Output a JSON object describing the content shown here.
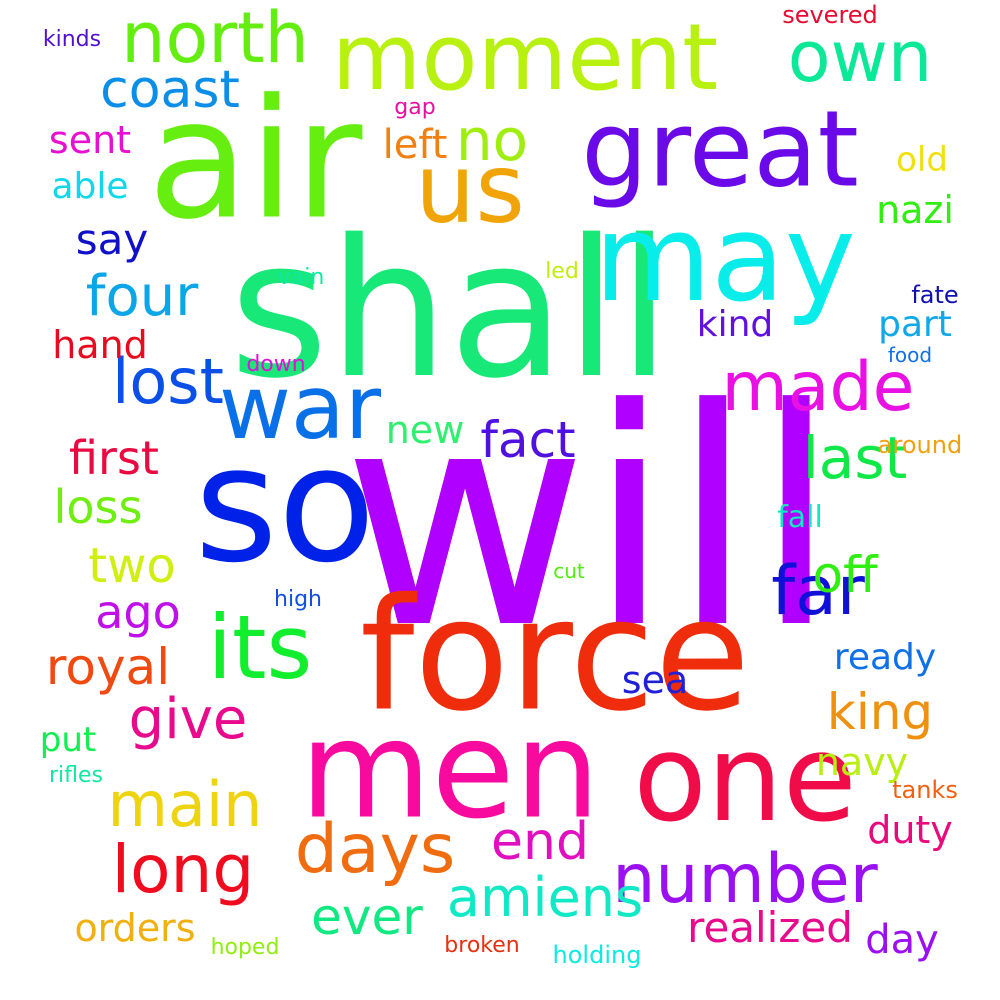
{
  "words": [
    {
      "text": "will",
      "color": "#b000ff"
    },
    {
      "text": "shall",
      "color": "#18e878"
    },
    {
      "text": "air",
      "color": "#66ee10"
    },
    {
      "text": "so",
      "color": "#0022e8"
    },
    {
      "text": "force",
      "color": "#ef2c0c"
    },
    {
      "text": "men",
      "color": "#f80a9e"
    },
    {
      "text": "one",
      "color": "#f00c48"
    },
    {
      "text": "may",
      "color": "#08ecea"
    },
    {
      "text": "great",
      "color": "#6a0ae8"
    },
    {
      "text": "us",
      "color": "#f0a408"
    },
    {
      "text": "moment",
      "color": "#b8f010"
    },
    {
      "text": "war",
      "color": "#0a70e8"
    },
    {
      "text": "its",
      "color": "#10ee2e"
    },
    {
      "text": "north",
      "color": "#64ee10"
    },
    {
      "text": "own",
      "color": "#0ae898"
    },
    {
      "text": "made",
      "color": "#e810e2"
    },
    {
      "text": "number",
      "color": "#9a10f0"
    },
    {
      "text": "days",
      "color": "#f06c10"
    },
    {
      "text": "long",
      "color": "#f00c1e"
    },
    {
      "text": "main",
      "color": "#eed410"
    },
    {
      "text": "far",
      "color": "#1010d8"
    },
    {
      "text": "lost",
      "color": "#0a50e8"
    },
    {
      "text": "coast",
      "color": "#0a8ee8"
    },
    {
      "text": "four",
      "color": "#0aa6e8"
    },
    {
      "text": "give",
      "color": "#e80a8c"
    },
    {
      "text": "amiens",
      "color": "#10e8c6"
    },
    {
      "text": "fact",
      "color": "#5010e0"
    },
    {
      "text": "last",
      "color": "#10e848"
    },
    {
      "text": "end",
      "color": "#e010c0"
    },
    {
      "text": "ever",
      "color": "#10e882"
    },
    {
      "text": "king",
      "color": "#f09010"
    },
    {
      "text": "royal",
      "color": "#f04a10"
    },
    {
      "text": "no",
      "color": "#a0ee10"
    },
    {
      "text": "realized",
      "color": "#e80a8c"
    },
    {
      "text": "two",
      "color": "#d0ee10"
    },
    {
      "text": "ago",
      "color": "#c010e8"
    },
    {
      "text": "loss",
      "color": "#70ee10"
    },
    {
      "text": "first",
      "color": "#e80a40"
    },
    {
      "text": "off",
      "color": "#30ee10"
    },
    {
      "text": "say",
      "color": "#1010c8"
    },
    {
      "text": "kind",
      "color": "#6010e0"
    },
    {
      "text": "hand",
      "color": "#e80a1e"
    },
    {
      "text": "sent",
      "color": "#e810d0"
    },
    {
      "text": "able",
      "color": "#10d8e8"
    },
    {
      "text": "left",
      "color": "#f08010"
    },
    {
      "text": "day",
      "color": "#9a10f0"
    },
    {
      "text": "orders",
      "color": "#f0b010"
    },
    {
      "text": "duty",
      "color": "#e80a7c"
    },
    {
      "text": "ready",
      "color": "#1070e8"
    },
    {
      "text": "part",
      "color": "#10a8e8"
    },
    {
      "text": "nazi",
      "color": "#30ee10"
    },
    {
      "text": "navy",
      "color": "#b8ee10"
    },
    {
      "text": "new",
      "color": "#30ee70"
    },
    {
      "text": "sea",
      "color": "#2020d8"
    },
    {
      "text": "put",
      "color": "#10ee50"
    },
    {
      "text": "old",
      "color": "#f0e010"
    },
    {
      "text": "fall",
      "color": "#10e8c0"
    },
    {
      "text": "tanks",
      "color": "#f06010"
    },
    {
      "text": "around",
      "color": "#f0a010"
    },
    {
      "text": "fate",
      "color": "#1010b0"
    },
    {
      "text": "food",
      "color": "#1070e8"
    },
    {
      "text": "high",
      "color": "#1050e0"
    },
    {
      "text": "down",
      "color": "#e010d8"
    },
    {
      "text": "vain",
      "color": "#10e8a0"
    },
    {
      "text": "led",
      "color": "#c0ee10"
    },
    {
      "text": "gap",
      "color": "#e810a0"
    },
    {
      "text": "cut",
      "color": "#50ee10"
    },
    {
      "text": "kinds",
      "color": "#5010d0"
    },
    {
      "text": "severed",
      "color": "#e80a30"
    },
    {
      "text": "rifles",
      "color": "#10e8a0"
    },
    {
      "text": "hoped",
      "color": "#90ee10"
    },
    {
      "text": "broken",
      "color": "#e83010"
    },
    {
      "text": "holding",
      "color": "#10e8e0"
    }
  ]
}
